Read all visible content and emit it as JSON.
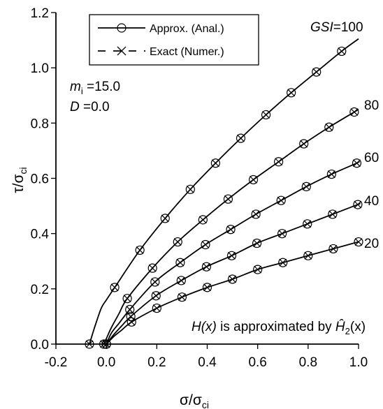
{
  "chart_data": {
    "type": "line",
    "xlim": [
      -0.2,
      1.0
    ],
    "ylim": [
      0,
      1.2
    ],
    "x_ticks": [
      -0.2,
      0.0,
      0.2,
      0.4,
      0.6,
      0.8,
      1.0
    ],
    "x_tick_labels": [
      "-0.2",
      "0.0",
      "0.2",
      "0.4",
      "0.6",
      "0.8",
      "1.0"
    ],
    "y_ticks": [
      0.0,
      0.2,
      0.4,
      0.6,
      0.8,
      1.0,
      1.2
    ],
    "y_tick_labels": [
      "0.0",
      "0.2",
      "0.4",
      "0.6",
      "0.8",
      "1.0",
      "1.2"
    ],
    "xlabel": {
      "main": "σ/σ",
      "sub": "ci"
    },
    "ylabel": {
      "main": "τ/σ",
      "sub": "ci"
    },
    "grid": false,
    "legend": {
      "position": "top-left",
      "entries": [
        {
          "label": "Approx. (Anal.)",
          "line": "solid",
          "marker": "circle"
        },
        {
          "label": "Exact (Numer.)",
          "line": "dashed",
          "marker": "x"
        }
      ]
    },
    "params": [
      {
        "sym": "m",
        "sub": "i",
        "text": " =15.0"
      },
      {
        "sym": "D",
        "sub": "",
        "text": " =0.0"
      }
    ],
    "note": {
      "hx": "H(x)",
      "mid": " is approximated by ",
      "h": "Ĥ",
      "sub": "2",
      "tail": "(x)"
    },
    "curve_labels": [
      {
        "prefix": "GSI",
        "text": "=100"
      },
      {
        "prefix": "",
        "text": "80"
      },
      {
        "prefix": "",
        "text": "60"
      },
      {
        "prefix": "",
        "text": "40"
      },
      {
        "prefix": "",
        "text": "20"
      }
    ],
    "series": [
      {
        "gsi": 100,
        "x": [
          -0.067,
          -0.045,
          -0.02,
          0.0,
          0.033,
          0.133,
          0.233,
          0.333,
          0.433,
          0.533,
          0.633,
          0.733,
          0.833,
          0.933,
          1.0
        ],
        "y": [
          0.0,
          0.065,
          0.13,
          0.16,
          0.205,
          0.34,
          0.455,
          0.56,
          0.655,
          0.745,
          0.83,
          0.91,
          0.985,
          1.06,
          1.105
        ],
        "markers": [
          [
            -0.067,
            0.0
          ],
          [
            0.033,
            0.205
          ],
          [
            0.133,
            0.34
          ],
          [
            0.233,
            0.455
          ],
          [
            0.333,
            0.56
          ],
          [
            0.433,
            0.655
          ],
          [
            0.533,
            0.745
          ],
          [
            0.633,
            0.83
          ],
          [
            0.733,
            0.91
          ],
          [
            0.833,
            0.985
          ],
          [
            0.933,
            1.06
          ]
        ]
      },
      {
        "gsi": 80,
        "x": [
          -0.01,
          0.0,
          0.02,
          0.05,
          0.083,
          0.183,
          0.283,
          0.383,
          0.483,
          0.583,
          0.683,
          0.783,
          0.883,
          0.983,
          1.0
        ],
        "y": [
          0.0,
          0.02,
          0.06,
          0.11,
          0.165,
          0.275,
          0.37,
          0.45,
          0.525,
          0.595,
          0.66,
          0.725,
          0.785,
          0.84,
          0.85
        ],
        "markers": [
          [
            -0.01,
            0.0
          ],
          [
            0.083,
            0.165
          ],
          [
            0.183,
            0.275
          ],
          [
            0.283,
            0.37
          ],
          [
            0.383,
            0.45
          ],
          [
            0.483,
            0.525
          ],
          [
            0.583,
            0.595
          ],
          [
            0.683,
            0.66
          ],
          [
            0.783,
            0.725
          ],
          [
            0.883,
            0.785
          ],
          [
            0.983,
            0.84
          ]
        ]
      },
      {
        "gsi": 60,
        "x": [
          0.0,
          0.02,
          0.05,
          0.093,
          0.193,
          0.293,
          0.393,
          0.493,
          0.593,
          0.693,
          0.793,
          0.893,
          0.993,
          1.0
        ],
        "y": [
          0.0,
          0.04,
          0.075,
          0.125,
          0.225,
          0.295,
          0.36,
          0.415,
          0.47,
          0.52,
          0.57,
          0.615,
          0.655,
          0.66
        ],
        "markers": [
          [
            0.0,
            0.0
          ],
          [
            0.093,
            0.125
          ],
          [
            0.193,
            0.225
          ],
          [
            0.293,
            0.295
          ],
          [
            0.393,
            0.36
          ],
          [
            0.493,
            0.415
          ],
          [
            0.593,
            0.47
          ],
          [
            0.693,
            0.52
          ],
          [
            0.793,
            0.57
          ],
          [
            0.893,
            0.615
          ],
          [
            0.993,
            0.655
          ]
        ]
      },
      {
        "gsi": 40,
        "x": [
          0.0,
          0.03,
          0.06,
          0.097,
          0.197,
          0.297,
          0.397,
          0.497,
          0.597,
          0.697,
          0.797,
          0.897,
          0.997,
          1.0
        ],
        "y": [
          0.0,
          0.035,
          0.065,
          0.1,
          0.175,
          0.23,
          0.28,
          0.32,
          0.365,
          0.4,
          0.435,
          0.47,
          0.505,
          0.507
        ],
        "markers": [
          [
            0.0,
            0.0
          ],
          [
            0.097,
            0.1
          ],
          [
            0.197,
            0.175
          ],
          [
            0.297,
            0.23
          ],
          [
            0.397,
            0.28
          ],
          [
            0.497,
            0.32
          ],
          [
            0.597,
            0.365
          ],
          [
            0.697,
            0.4
          ],
          [
            0.797,
            0.435
          ],
          [
            0.897,
            0.47
          ],
          [
            0.997,
            0.505
          ]
        ]
      },
      {
        "gsi": 20,
        "x": [
          0.0,
          0.03,
          0.06,
          0.1,
          0.2,
          0.3,
          0.4,
          0.5,
          0.6,
          0.7,
          0.8,
          0.9,
          1.0
        ],
        "y": [
          0.0,
          0.028,
          0.05,
          0.08,
          0.13,
          0.17,
          0.205,
          0.235,
          0.27,
          0.295,
          0.32,
          0.345,
          0.37
        ],
        "markers": [
          [
            0.0,
            0.0
          ],
          [
            0.1,
            0.08
          ],
          [
            0.2,
            0.13
          ],
          [
            0.3,
            0.17
          ],
          [
            0.4,
            0.205
          ],
          [
            0.5,
            0.235
          ],
          [
            0.6,
            0.27
          ],
          [
            0.7,
            0.295
          ],
          [
            0.8,
            0.32
          ],
          [
            0.9,
            0.345
          ],
          [
            1.0,
            0.37
          ]
        ]
      }
    ]
  }
}
